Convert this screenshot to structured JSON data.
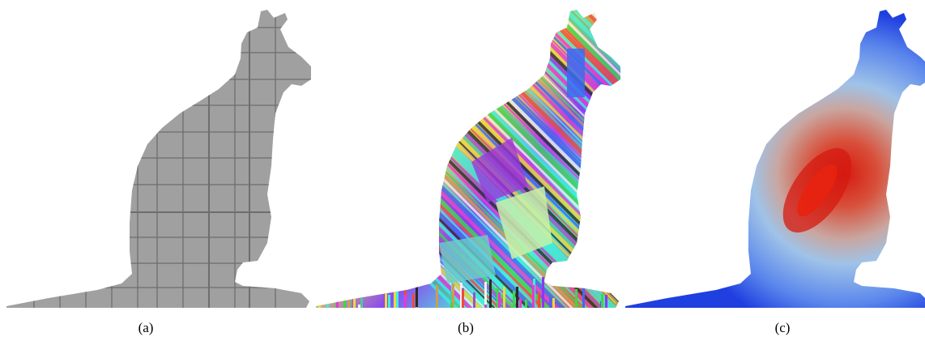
{
  "figure": {
    "panels": [
      {
        "id": "a",
        "caption": "(a)"
      },
      {
        "id": "b",
        "caption": "(b)"
      },
      {
        "id": "c",
        "caption": "(c)"
      }
    ]
  },
  "colors": {
    "silhouette_gray": "#a0a0a0",
    "grid_line": "#6e6e6e",
    "heat_edge": "#1f3fe0",
    "heat_mid": "#9fc3e8",
    "heat_core": "#d61a10"
  }
}
